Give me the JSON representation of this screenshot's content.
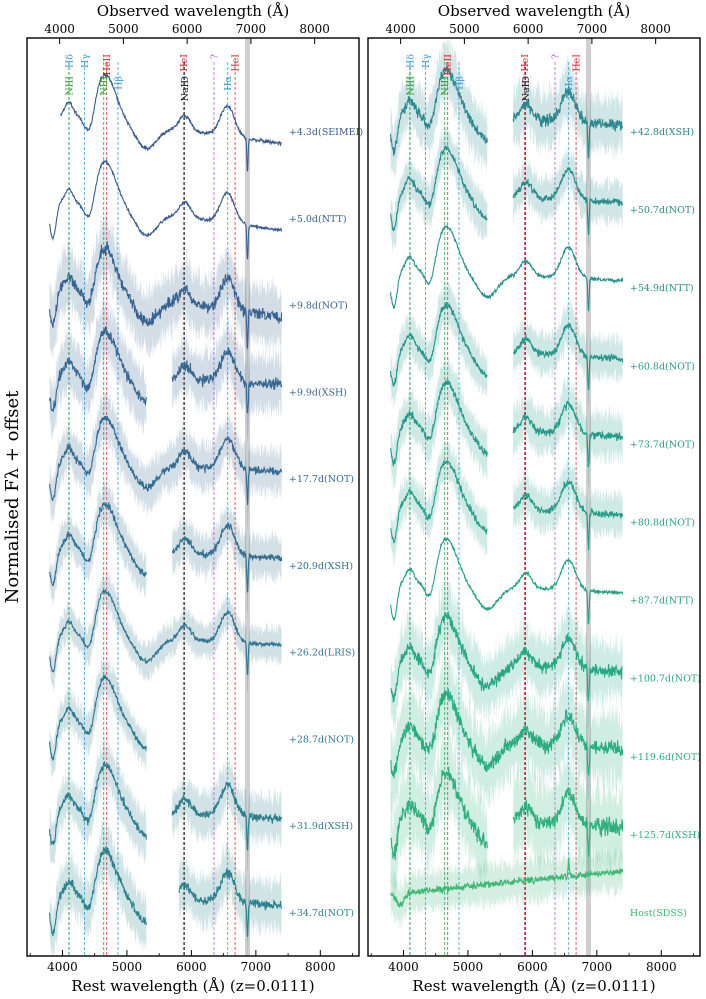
{
  "figure": {
    "ylabel": "Normalised Fλ + offset",
    "xlabel_bottom": "Rest wavelength (Å) (z=0.0111)",
    "xlabel_top": "Observed wavelength (Å)"
  },
  "chart_data": [
    {
      "type": "line",
      "panel": "left",
      "xlim": [
        3450,
        8600
      ],
      "x_ticks": [
        4000,
        5000,
        6000,
        7000,
        8000
      ],
      "top_ticks": [
        4000,
        5000,
        6000,
        7000,
        8000
      ],
      "redshift": 0.0111,
      "line_markers": [
        {
          "label": "Hδ",
          "x": 4102,
          "color": "#3b9ad9"
        },
        {
          "label": "NIII",
          "x": 4100,
          "color": "#2e9b2e"
        },
        {
          "label": "Hγ",
          "x": 4341,
          "color": "#3b9ad9"
        },
        {
          "label": "NIII",
          "x": 4640,
          "color": "#2e9b2e"
        },
        {
          "label": "HeII",
          "x": 4686,
          "color": "#e0262e"
        },
        {
          "label": "Hβ",
          "x": 4861,
          "color": "#3b9ad9"
        },
        {
          "label": "HeI",
          "x": 5876,
          "color": "#e0262e"
        },
        {
          "label": "NaID",
          "x": 5893,
          "color": "#222222"
        },
        {
          "label": "?",
          "x": 6350,
          "color": "#b45ad8"
        },
        {
          "label": "Hα",
          "x": 6563,
          "color": "#3b9ad9"
        },
        {
          "label": "HeI",
          "x": 6678,
          "color": "#e0262e"
        }
      ],
      "telluric": 6870,
      "series": [
        {
          "label": "+4.3d(SEIMEI)",
          "x_start": 3970,
          "x_end": 7400,
          "color": "#3b5b8e",
          "noise": 0.25
        },
        {
          "label": "+5.0d(NTT)",
          "x_start": 3800,
          "x_end": 7400,
          "color": "#3a5d8f",
          "noise": 0.2
        },
        {
          "label": "+9.8d(NOT)",
          "x_start": 3800,
          "x_end": 7400,
          "color": "#38628f",
          "noise": 0.9,
          "band": true
        },
        {
          "label": "+9.9d(XSH)",
          "x_start": 3800,
          "x_end": 7400,
          "color": "#376690",
          "noise": 0.8,
          "band": true,
          "gaps": [
            [
              5300,
              5700
            ]
          ]
        },
        {
          "label": "+17.7d(NOT)",
          "x_start": 3800,
          "x_end": 7400,
          "color": "#356b91",
          "noise": 0.6,
          "band": true
        },
        {
          "label": "+20.9d(XSH)",
          "x_start": 3800,
          "x_end": 7400,
          "color": "#33708f",
          "noise": 0.5,
          "band": true,
          "gaps": [
            [
              5300,
              5700
            ]
          ]
        },
        {
          "label": "+26.2d(LRIS)",
          "x_start": 3800,
          "x_end": 7400,
          "color": "#31758f",
          "noise": 0.35,
          "band": true
        },
        {
          "label": "+28.7d(NOT)",
          "x_start": 3800,
          "x_end": 5300,
          "color": "#2f798e",
          "noise": 0.4,
          "band": true
        },
        {
          "label": "+31.9d(XSH)",
          "x_start": 3800,
          "x_end": 7400,
          "color": "#2d7e8e",
          "noise": 0.6,
          "band": true,
          "gaps": [
            [
              5300,
              5700
            ]
          ]
        },
        {
          "label": "+34.7d(NOT)",
          "x_start": 3800,
          "x_end": 7400,
          "color": "#2b838d",
          "noise": 0.7,
          "band": true,
          "gaps": [
            [
              5300,
              5800
            ]
          ]
        }
      ]
    },
    {
      "type": "line",
      "panel": "right",
      "xlim": [
        3450,
        8600
      ],
      "x_ticks": [
        4000,
        5000,
        6000,
        7000,
        8000
      ],
      "top_ticks": [
        4000,
        5000,
        6000,
        7000,
        8000
      ],
      "redshift": 0.0111,
      "line_markers": [
        {
          "label": "Hδ",
          "x": 4102,
          "color": "#3b9ad9"
        },
        {
          "label": "NIII",
          "x": 4100,
          "color": "#2e9b2e"
        },
        {
          "label": "Hγ",
          "x": 4341,
          "color": "#3b9ad9"
        },
        {
          "label": "NIII",
          "x": 4640,
          "color": "#2e9b2e"
        },
        {
          "label": "HeII",
          "x": 4686,
          "color": "#e0262e"
        },
        {
          "label": "Hβ",
          "x": 4861,
          "color": "#3b9ad9"
        },
        {
          "label": "HeI",
          "x": 5876,
          "color": "#e0262e"
        },
        {
          "label": "NaID",
          "x": 5893,
          "color": "#222222"
        },
        {
          "label": "?",
          "x": 6350,
          "color": "#b45ad8"
        },
        {
          "label": "Hα",
          "x": 6563,
          "color": "#3b9ad9"
        },
        {
          "label": "HeI",
          "x": 6678,
          "color": "#e0262e"
        }
      ],
      "telluric": 6870,
      "series": [
        {
          "label": "+42.8d(XSH)",
          "x_start": 3800,
          "x_end": 7400,
          "color": "#2a878c",
          "noise": 0.8,
          "band": true,
          "gaps": [
            [
              5300,
              5700
            ]
          ]
        },
        {
          "label": "+50.7d(NOT)",
          "x_start": 3800,
          "x_end": 7400,
          "color": "#298c8b",
          "noise": 0.5,
          "band": true,
          "gaps": [
            [
              5300,
              5700
            ]
          ]
        },
        {
          "label": "+54.9d(NTT)",
          "x_start": 3800,
          "x_end": 7400,
          "color": "#28908a",
          "noise": 0.25
        },
        {
          "label": "+60.8d(NOT)",
          "x_start": 3800,
          "x_end": 7400,
          "color": "#26958a",
          "noise": 0.5,
          "band": true,
          "gaps": [
            [
              5300,
              5700
            ]
          ]
        },
        {
          "label": "+73.7d(NOT)",
          "x_start": 3800,
          "x_end": 7400,
          "color": "#249a89",
          "noise": 0.6,
          "band": true,
          "gaps": [
            [
              5300,
              5700
            ]
          ]
        },
        {
          "label": "+80.8d(NOT)",
          "x_start": 3800,
          "x_end": 7400,
          "color": "#239f87",
          "noise": 0.5,
          "band": true,
          "gaps": [
            [
              5300,
              5700
            ]
          ]
        },
        {
          "label": "+87.7d(NTT)",
          "x_start": 3800,
          "x_end": 7400,
          "color": "#23a385",
          "noise": 0.25
        },
        {
          "label": "+100.7d(NOT)",
          "x_start": 3800,
          "x_end": 7400,
          "color": "#25a883",
          "noise": 0.9,
          "band": true
        },
        {
          "label": "+119.6d(NOT)",
          "x_start": 3800,
          "x_end": 7400,
          "color": "#28ac80",
          "noise": 1.1,
          "band": true
        },
        {
          "label": "+125.7d(XSH)",
          "x_start": 3800,
          "x_end": 7400,
          "color": "#2eb07c",
          "noise": 1.2,
          "band": true,
          "gaps": [
            [
              5300,
              5700
            ]
          ]
        },
        {
          "label": "Host(SDSS)",
          "x_start": 3800,
          "x_end": 7400,
          "color": "#3cb875",
          "noise": 0.5,
          "band": true,
          "host": true
        }
      ]
    }
  ]
}
